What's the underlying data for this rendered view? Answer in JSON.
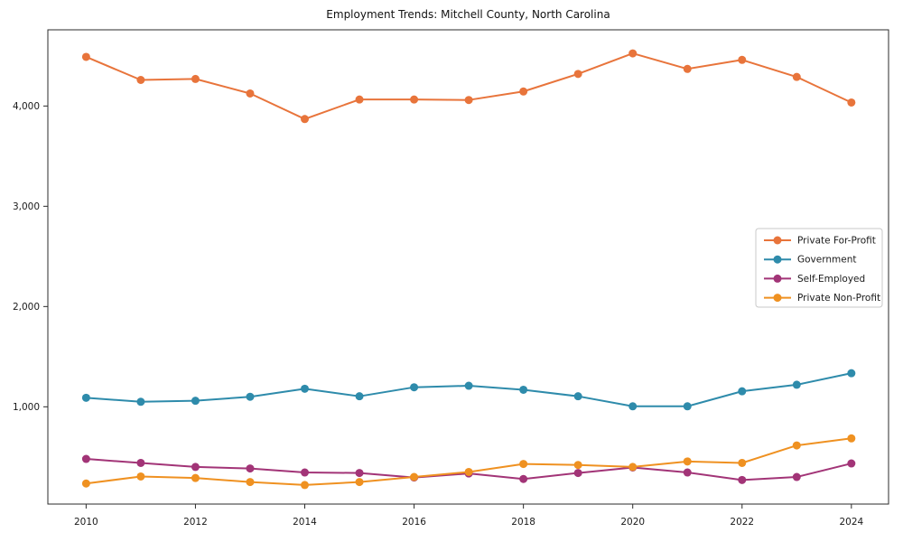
{
  "title": "Employment Trends: Mitchell County, North Carolina",
  "chart_data": {
    "type": "line",
    "title": "Employment Trends: Mitchell County, North Carolina",
    "xlabel": "",
    "ylabel": "",
    "x": [
      2010,
      2011,
      2012,
      2013,
      2014,
      2015,
      2016,
      2017,
      2018,
      2019,
      2020,
      2021,
      2022,
      2023,
      2024
    ],
    "series": [
      {
        "name": "Private For-Profit",
        "color": "#E8743B",
        "values": [
          4490,
          4260,
          4270,
          4125,
          3870,
          4065,
          4065,
          4060,
          4145,
          4320,
          4525,
          4370,
          4460,
          4290,
          4035
        ]
      },
      {
        "name": "Government",
        "color": "#2E8BAB",
        "values": [
          1090,
          1050,
          1060,
          1100,
          1180,
          1105,
          1195,
          1210,
          1170,
          1105,
          1005,
          1005,
          1155,
          1220,
          1335
        ]
      },
      {
        "name": "Self-Employed",
        "color": "#A23477",
        "values": [
          480,
          440,
          400,
          385,
          345,
          340,
          295,
          335,
          280,
          340,
          395,
          345,
          270,
          300,
          435
        ]
      },
      {
        "name": "Private Non-Profit",
        "color": "#EF9121",
        "values": [
          235,
          305,
          290,
          250,
          220,
          250,
          300,
          350,
          430,
          420,
          400,
          455,
          440,
          615,
          685
        ]
      }
    ],
    "xticks": [
      2010,
      2012,
      2014,
      2016,
      2018,
      2020,
      2022,
      2024
    ],
    "yticks": [
      1000,
      2000,
      3000,
      4000
    ],
    "ytick_labels": [
      "1,000",
      "2,000",
      "3,000",
      "4,000"
    ],
    "xlim": [
      2009.3,
      2024.68
    ],
    "ylim": [
      30,
      4760
    ],
    "grid": false,
    "legend_position": "center right",
    "marker": "circle",
    "axis_color": "#2b2b2b",
    "tick_label_color": "#1a1a1a",
    "legend_border_color": "#c9c9c9",
    "background_color": "#ffffff"
  }
}
